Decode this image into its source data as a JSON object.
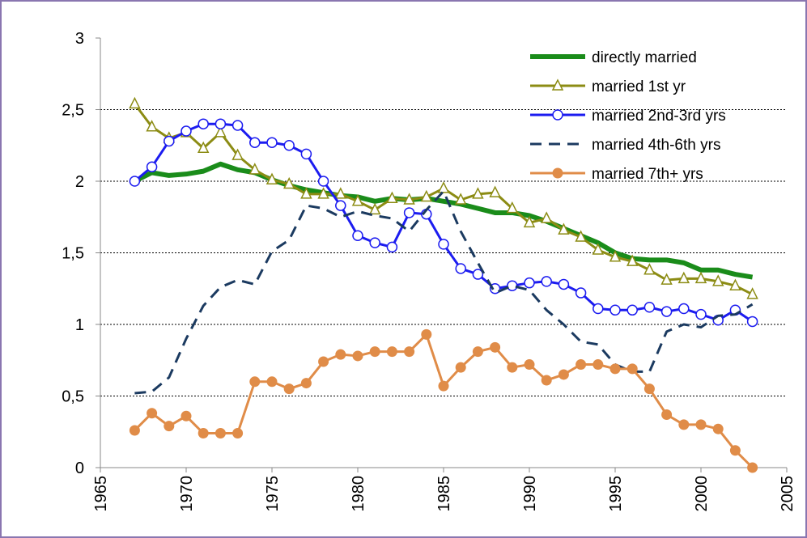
{
  "chart_data": {
    "type": "line",
    "x": [
      1967,
      1968,
      1969,
      1970,
      1971,
      1972,
      1973,
      1974,
      1975,
      1976,
      1977,
      1978,
      1979,
      1980,
      1981,
      1982,
      1983,
      1984,
      1985,
      1986,
      1987,
      1988,
      1989,
      1990,
      1991,
      1992,
      1993,
      1994,
      1995,
      1996,
      1997,
      1998,
      1999,
      2000,
      2001,
      2002,
      2003
    ],
    "series": [
      {
        "name": "directly married",
        "color": "#1a8c1a",
        "width": 6,
        "marker": "none",
        "dash": false,
        "values": [
          2.0,
          2.06,
          2.04,
          2.05,
          2.07,
          2.12,
          2.08,
          2.06,
          2.01,
          1.97,
          1.94,
          1.92,
          1.9,
          1.89,
          1.86,
          1.88,
          1.87,
          1.88,
          1.86,
          1.84,
          1.81,
          1.78,
          1.78,
          1.76,
          1.72,
          1.67,
          1.62,
          1.57,
          1.5,
          1.46,
          1.45,
          1.45,
          1.43,
          1.38,
          1.38,
          1.35,
          1.33
        ]
      },
      {
        "name": "married 1st yr",
        "color": "#8c8c14",
        "width": 3,
        "marker": "triangle",
        "dash": false,
        "values": [
          2.54,
          2.38,
          2.3,
          2.34,
          2.23,
          2.34,
          2.18,
          2.08,
          2.01,
          1.98,
          1.91,
          1.91,
          1.91,
          1.86,
          1.8,
          1.88,
          1.87,
          1.89,
          1.95,
          1.87,
          1.91,
          1.92,
          1.81,
          1.71,
          1.74,
          1.66,
          1.61,
          1.52,
          1.47,
          1.44,
          1.38,
          1.31,
          1.32,
          1.32,
          1.3,
          1.27,
          1.21
        ]
      },
      {
        "name": "married 2nd-3rd yrs",
        "color": "#1c1cf0",
        "width": 3,
        "marker": "circle-open",
        "dash": false,
        "values": [
          2.0,
          2.1,
          2.28,
          2.35,
          2.4,
          2.4,
          2.39,
          2.27,
          2.27,
          2.25,
          2.19,
          2.0,
          1.83,
          1.62,
          1.57,
          1.54,
          1.78,
          1.77,
          1.56,
          1.39,
          1.35,
          1.25,
          1.27,
          1.29,
          1.3,
          1.28,
          1.22,
          1.11,
          1.1,
          1.1,
          1.12,
          1.09,
          1.11,
          1.07,
          1.03,
          1.1,
          1.02
        ]
      },
      {
        "name": "married 4th-6th yrs",
        "color": "#1b3a60",
        "width": 3,
        "marker": "none",
        "dash": true,
        "values": [
          0.52,
          0.53,
          0.63,
          0.9,
          1.13,
          1.26,
          1.31,
          1.28,
          1.51,
          1.59,
          1.83,
          1.81,
          1.75,
          1.79,
          1.76,
          1.74,
          1.65,
          1.8,
          1.93,
          1.65,
          1.43,
          1.22,
          1.27,
          1.24,
          1.1,
          1.0,
          0.88,
          0.86,
          0.72,
          0.67,
          0.67,
          0.95,
          1.0,
          0.98,
          1.06,
          1.07,
          1.14
        ]
      },
      {
        "name": "married 7th+ yrs",
        "color": "#e08c48",
        "width": 3,
        "marker": "circle-filled",
        "dash": false,
        "values": [
          0.26,
          0.38,
          0.29,
          0.36,
          0.24,
          0.24,
          0.24,
          0.6,
          0.6,
          0.55,
          0.59,
          0.74,
          0.79,
          0.78,
          0.81,
          0.81,
          0.81,
          0.93,
          0.57,
          0.7,
          0.81,
          0.84,
          0.7,
          0.72,
          0.61,
          0.65,
          0.72,
          0.72,
          0.69,
          0.69,
          0.55,
          0.37,
          0.3,
          0.3,
          0.27,
          0.12,
          0.0
        ]
      }
    ],
    "xlim": [
      1965,
      2005
    ],
    "xticks": [
      1965,
      1970,
      1975,
      1980,
      1985,
      1990,
      1995,
      2000,
      2005
    ],
    "ylim": [
      0,
      3
    ],
    "yticks": [
      0,
      {
        "value": 0.5,
        "label": "0,5"
      },
      1,
      {
        "value": 1.5,
        "label": "1,5"
      },
      2,
      {
        "value": 2.5,
        "label": "2,5"
      },
      3
    ],
    "grid": true,
    "legend": "upper right"
  }
}
